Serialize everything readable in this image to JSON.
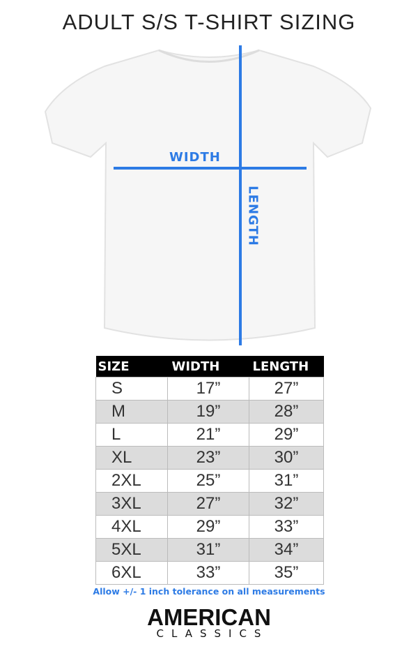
{
  "title": "ADULT S/S T-SHIRT SIZING",
  "diagram": {
    "width_label": "WIDTH",
    "length_label": "LENGTH",
    "line_color": "#2d7be5"
  },
  "table": {
    "headers": [
      "SIZE",
      "WIDTH",
      "LENGTH"
    ],
    "rows": [
      [
        "S",
        "17”",
        "27”"
      ],
      [
        "M",
        "19”",
        "28”"
      ],
      [
        "L",
        "21”",
        "29”"
      ],
      [
        "XL",
        "23”",
        "30”"
      ],
      [
        "2XL",
        "25”",
        "31”"
      ],
      [
        "3XL",
        "27”",
        "32”"
      ],
      [
        "4XL",
        "29”",
        "33”"
      ],
      [
        "5XL",
        "31”",
        "34”"
      ],
      [
        "6XL",
        "33”",
        "35”"
      ]
    ]
  },
  "note": "Allow +/- 1 inch tolerance on all measurements",
  "logo": {
    "line1": "AMERICAN",
    "line2": "CLASSICS"
  }
}
